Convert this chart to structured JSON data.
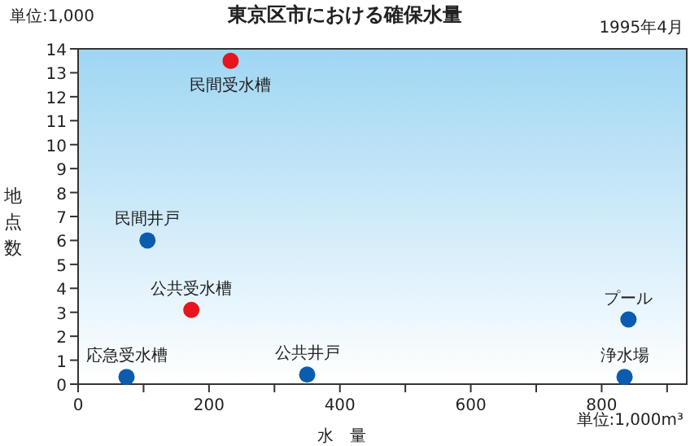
{
  "chart_data": {
    "type": "scatter",
    "title": "東京区市における確保水量",
    "xlabel": "水　量",
    "ylabel": "地点数",
    "annotations": [
      "単位:1,000",
      "1995年4月",
      "単位:1,000m³",
      {
        "text": "民間受水槽",
        "x": 233,
        "y": 13.5
      },
      {
        "text": "民間井戸",
        "x": 106,
        "y": 6
      },
      {
        "text": "公共受水槽",
        "x": 173,
        "y": 3.1
      },
      {
        "text": "応急受水槽",
        "x": 74,
        "y": 0.3
      },
      {
        "text": "公共井戸",
        "x": 350,
        "y": 0.4
      },
      {
        "text": "プール",
        "x": 841,
        "y": 2.7
      },
      {
        "text": "浄水場",
        "x": 835,
        "y": 0.3
      }
    ],
    "series": [
      {
        "color": "#e8141e",
        "x": [
          233,
          173
        ],
        "values": [
          13.5,
          3.1
        ]
      },
      {
        "color": "#0a5cb0",
        "x": [
          106,
          74,
          350,
          841,
          835
        ],
        "values": [
          6,
          0.3,
          0.4,
          2.7,
          0.3
        ]
      }
    ],
    "marker": "circle",
    "grid": false,
    "xlim": [
      0,
      930
    ],
    "ylim": [
      0,
      14
    ],
    "xticks": [
      0,
      {
        "value": 100,
        "label": null
      },
      200,
      {
        "value": 300,
        "label": null
      },
      400,
      {
        "value": 500,
        "label": null
      },
      600,
      {
        "value": 700,
        "label": null
      },
      800,
      {
        "value": 900,
        "label": null
      }
    ],
    "yticks": [
      0,
      1,
      2,
      3,
      4,
      5,
      6,
      7,
      8,
      9,
      10,
      11,
      12,
      13,
      14
    ]
  }
}
